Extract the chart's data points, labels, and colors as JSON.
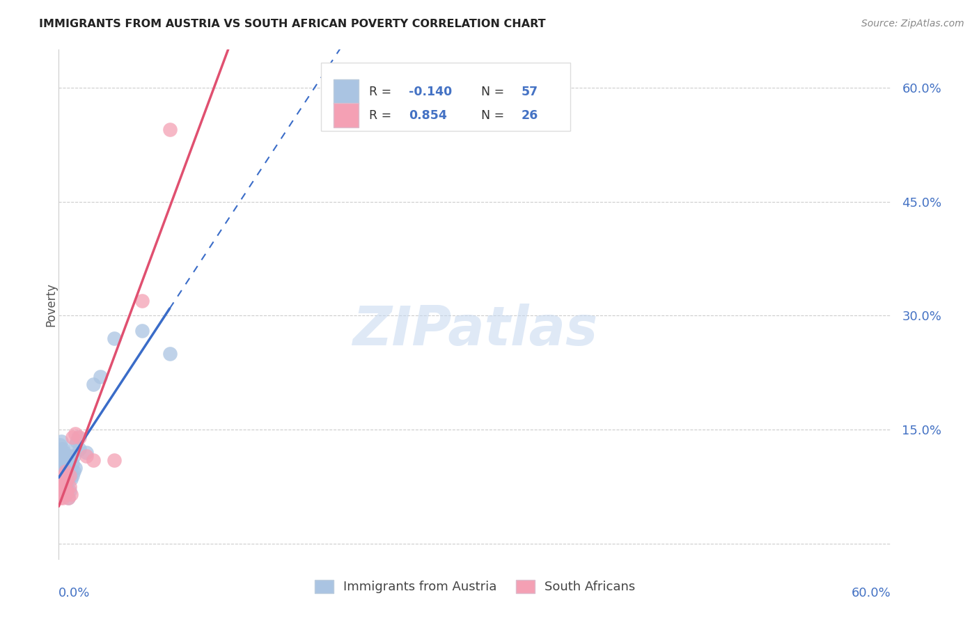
{
  "title": "IMMIGRANTS FROM AUSTRIA VS SOUTH AFRICAN POVERTY CORRELATION CHART",
  "source": "Source: ZipAtlas.com",
  "ylabel": "Poverty",
  "ytick_values": [
    0.0,
    0.15,
    0.3,
    0.45,
    0.6
  ],
  "ytick_labels": [
    "",
    "15.0%",
    "30.0%",
    "45.0%",
    "60.0%"
  ],
  "xlim": [
    0.0,
    0.6
  ],
  "ylim": [
    -0.02,
    0.65
  ],
  "austria_R": -0.14,
  "austria_N": 57,
  "sa_R": 0.854,
  "sa_N": 26,
  "austria_color": "#aac4e2",
  "sa_color": "#f4a0b4",
  "austria_line_color": "#3a6cc8",
  "sa_line_color": "#e05070",
  "background_color": "#ffffff",
  "watermark_text": "ZIPatlas",
  "legend_austria_label": "Immigrants from Austria",
  "legend_sa_label": "South Africans",
  "austria_x": [
    0.001,
    0.001,
    0.001,
    0.001,
    0.001,
    0.002,
    0.002,
    0.002,
    0.002,
    0.002,
    0.002,
    0.002,
    0.003,
    0.003,
    0.003,
    0.003,
    0.003,
    0.003,
    0.004,
    0.004,
    0.004,
    0.004,
    0.004,
    0.005,
    0.005,
    0.005,
    0.005,
    0.005,
    0.006,
    0.006,
    0.006,
    0.006,
    0.007,
    0.007,
    0.007,
    0.007,
    0.008,
    0.008,
    0.008,
    0.008,
    0.009,
    0.009,
    0.01,
    0.01,
    0.011,
    0.011,
    0.012,
    0.012,
    0.013,
    0.014,
    0.015,
    0.02,
    0.025,
    0.03,
    0.04,
    0.06,
    0.08
  ],
  "austria_y": [
    0.1,
    0.11,
    0.12,
    0.13,
    0.08,
    0.09,
    0.095,
    0.105,
    0.115,
    0.125,
    0.135,
    0.075,
    0.085,
    0.095,
    0.105,
    0.115,
    0.125,
    0.065,
    0.09,
    0.1,
    0.11,
    0.12,
    0.07,
    0.095,
    0.105,
    0.115,
    0.065,
    0.08,
    0.09,
    0.1,
    0.11,
    0.075,
    0.085,
    0.095,
    0.105,
    0.06,
    0.09,
    0.1,
    0.115,
    0.07,
    0.085,
    0.095,
    0.09,
    0.105,
    0.095,
    0.115,
    0.1,
    0.13,
    0.135,
    0.14,
    0.125,
    0.12,
    0.21,
    0.22,
    0.27,
    0.28,
    0.25
  ],
  "sa_x": [
    0.001,
    0.001,
    0.002,
    0.002,
    0.003,
    0.003,
    0.003,
    0.004,
    0.004,
    0.005,
    0.005,
    0.005,
    0.006,
    0.006,
    0.007,
    0.008,
    0.008,
    0.009,
    0.01,
    0.012,
    0.015,
    0.02,
    0.025,
    0.04,
    0.06,
    0.08
  ],
  "sa_y": [
    0.06,
    0.075,
    0.065,
    0.08,
    0.07,
    0.085,
    0.06,
    0.075,
    0.09,
    0.065,
    0.08,
    0.095,
    0.07,
    0.085,
    0.06,
    0.075,
    0.09,
    0.065,
    0.14,
    0.145,
    0.14,
    0.115,
    0.11,
    0.11,
    0.32,
    0.545
  ],
  "austria_line_x_start": 0.0,
  "austria_line_x_solid_end": 0.08,
  "austria_line_x_dash_end": 0.6,
  "sa_line_x_start": 0.0,
  "sa_line_x_end": 0.6
}
